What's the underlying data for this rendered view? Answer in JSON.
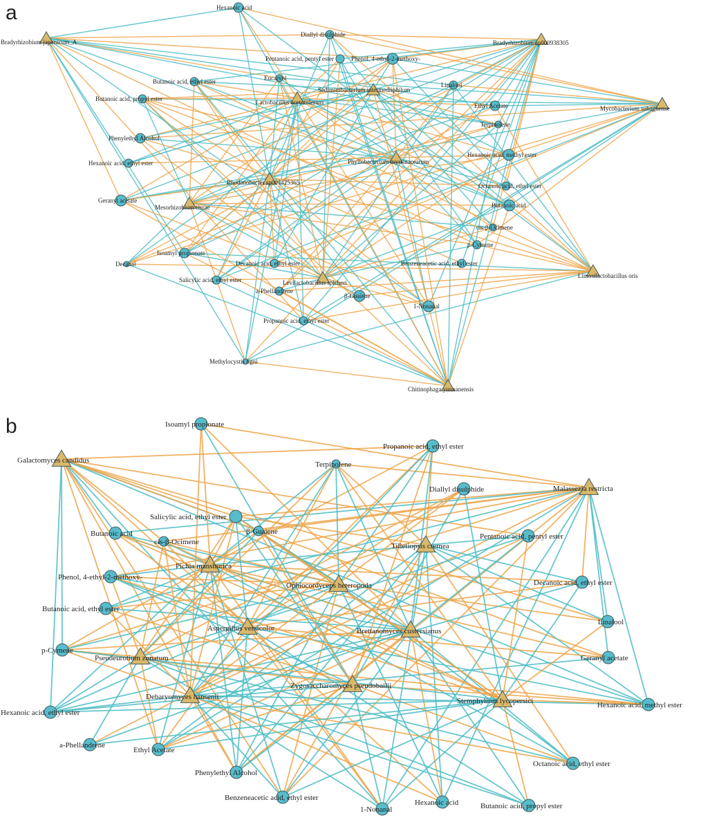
{
  "colors": {
    "positive": "#4bbcc4",
    "negative": "#eda54a",
    "circle_fill": "#57bccb",
    "triangle_fill": "#d9b96a",
    "node_stroke": "#445a5c"
  },
  "panels": [
    {
      "letter": "a",
      "microbes": [
        "Bradyrhizobium japonicum_A",
        "Bradyrhizobium sp000938305",
        "Mycobacterium subagnense",
        "Lactobacillus acetotolerans",
        "Phyllobacterium myrsinacearum",
        "Rhodanobacter sp001425365",
        "Mesorhizobium terrae",
        "Limosilactobacillus oris",
        "Levilactobacillus spicheri",
        "Chitinophaga yunnanensis",
        "Sediminibacterium intermediiphilum"
      ],
      "compounds": [
        "Hexanoic acid",
        "Diallyl disulphide",
        "Pentanoic acid, pentyl ester",
        "Phenol, 4-ethyl-2-methoxy-",
        "Butanoic acid, ethyl ester",
        "Eucarvol",
        "Linalool",
        "Butanoic acid, propyl ester",
        "Ethyl Acetate",
        "Terpinolene",
        "Phenylethyl Alcohol",
        "Hexanoic acid, methyl ester",
        "Hexanoic acid, ethyl ester",
        "Octanoic acid, ethyl ester",
        "Geranyl acetate",
        "Butanoic acid",
        "cis-β-Ocimene",
        "p-Cymene",
        "Isoamyl propionate",
        "Decanal",
        "Decanoic acid, ethyl ester",
        "Benzeneacetic acid, ethyl ester",
        "Salicylic acid, ethyl ester",
        "a-Phellandrene",
        "β-Guaiene",
        "1-Nonanal",
        "Propanoic acid, ethyl ester",
        "Methylocystis ligni"
      ]
    },
    {
      "letter": "b",
      "microbes": [
        "Galactomyces candidus",
        "Malassezia restricta",
        "Tilletiopsis cremea",
        "Pichia manshurica",
        "Ophiocordyceps heteropoda",
        "Aspergillus versicolor",
        "Brettanomyces custersianus",
        "Pseudeurotium zonatum",
        "Zygosaccharomyces pseudobailii",
        "Debaryomyces hansenii",
        "Stemphylium lycopersici"
      ],
      "compounds": [
        "Isoamyl propionate",
        "Propanoic acid, ethyl ester",
        "Terpinolene",
        "Diallyl disulphide",
        "Salicylic acid, ethyl ester",
        "β-Guaiene",
        "Butanoic acid",
        "cis-β-Ocimene",
        "Pentanoic acid, pentyl ester",
        "Phenol, 4-ethyl-2-methoxy-",
        "Decanoic acid, ethyl ester",
        "Butanoic acid, ethyl ester",
        "Linalool",
        "p-Cymene",
        "Geranyl acetate",
        "Hexanoic acid, methyl ester",
        "Hexanoic acid, ethyl ester",
        "a-Phellandrene",
        "Ethyl Acetate",
        "Phenylethyl Alcohol",
        "Octanoic acid, ethyl ester",
        "Benzeneacetic acid, ethyl ester",
        "1-Nonanal",
        "Hexanoic acid",
        "Butanoic acid, propyl ester"
      ]
    }
  ]
}
